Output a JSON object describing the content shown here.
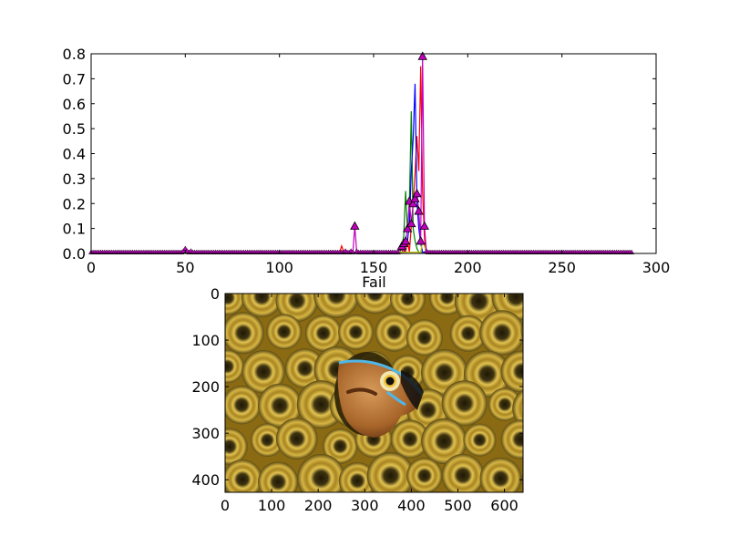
{
  "chart_data": [
    {
      "type": "line",
      "title": "",
      "xlabel": "",
      "ylabel": "",
      "xlim": [
        0,
        300
      ],
      "ylim": [
        0,
        0.8
      ],
      "xticks": [
        0,
        50,
        100,
        150,
        200,
        250,
        300
      ],
      "yticks": [
        0.0,
        0.1,
        0.2,
        0.3,
        0.4,
        0.5,
        0.6,
        0.7,
        0.8
      ],
      "xtick_labels": [
        "0",
        "50",
        "100",
        "150",
        "200",
        "250",
        "300"
      ],
      "ytick_labels": [
        "0.0",
        "0.1",
        "0.2",
        "0.3",
        "0.4",
        "0.5",
        "0.6",
        "0.7",
        "0.8"
      ],
      "grid": false,
      "legend": "none",
      "x_range_of_series": [
        0,
        287
      ],
      "series": [
        {
          "color": "#ff0000",
          "marker": "none",
          "peaks": [
            {
              "x": 133,
              "y": 0.03
            },
            {
              "x": 134,
              "y": 0.01
            },
            {
              "x": 166,
              "y": 0.02
            },
            {
              "x": 168,
              "y": 0.05
            },
            {
              "x": 170,
              "y": 0.11
            },
            {
              "x": 171,
              "y": 0.2
            },
            {
              "x": 172,
              "y": 0.32
            },
            {
              "x": 173,
              "y": 0.47
            },
            {
              "x": 174,
              "y": 0.33
            },
            {
              "x": 175,
              "y": 0.75
            },
            {
              "x": 176,
              "y": 0.25
            },
            {
              "x": 177,
              "y": 0.06
            }
          ]
        },
        {
          "color": "#008000",
          "marker": "none",
          "peaks": [
            {
              "x": 165,
              "y": 0.03
            },
            {
              "x": 166,
              "y": 0.07
            },
            {
              "x": 167,
              "y": 0.25
            },
            {
              "x": 168,
              "y": 0.09
            },
            {
              "x": 169,
              "y": 0.2
            },
            {
              "x": 170,
              "y": 0.57
            },
            {
              "x": 171,
              "y": 0.1
            },
            {
              "x": 172,
              "y": 0.05
            },
            {
              "x": 173,
              "y": 0.02
            }
          ]
        },
        {
          "color": "#0000ff",
          "marker": "none",
          "peaks": [
            {
              "x": 167,
              "y": 0.04
            },
            {
              "x": 168,
              "y": 0.05
            },
            {
              "x": 169,
              "y": 0.12
            },
            {
              "x": 170,
              "y": 0.33
            },
            {
              "x": 171,
              "y": 0.46
            },
            {
              "x": 172,
              "y": 0.68
            },
            {
              "x": 173,
              "y": 0.21
            },
            {
              "x": 174,
              "y": 0.1
            },
            {
              "x": 175,
              "y": 0.04
            }
          ]
        },
        {
          "color": "#bfbf00",
          "marker": "none",
          "peaks": [
            {
              "x": 176,
              "y": 0.05
            },
            {
              "x": 177,
              "y": 0.03
            }
          ]
        },
        {
          "color": "#bf00bf",
          "marker": "triangle",
          "peaks": [
            {
              "x": 49,
              "y": 0.01
            },
            {
              "x": 50,
              "y": 0.02
            },
            {
              "x": 51,
              "y": 0.01
            },
            {
              "x": 53,
              "y": 0.01
            },
            {
              "x": 135,
              "y": 0.01
            },
            {
              "x": 138,
              "y": 0.01
            },
            {
              "x": 140,
              "y": 0.11
            },
            {
              "x": 141,
              "y": 0.01
            },
            {
              "x": 164,
              "y": 0.02
            },
            {
              "x": 165,
              "y": 0.03
            },
            {
              "x": 166,
              "y": 0.04
            },
            {
              "x": 167,
              "y": 0.05
            },
            {
              "x": 168,
              "y": 0.1
            },
            {
              "x": 169,
              "y": 0.21
            },
            {
              "x": 170,
              "y": 0.12
            },
            {
              "x": 171,
              "y": 0.2
            },
            {
              "x": 172,
              "y": 0.22
            },
            {
              "x": 173,
              "y": 0.24
            },
            {
              "x": 174,
              "y": 0.17
            },
            {
              "x": 175,
              "y": 0.05
            },
            {
              "x": 176,
              "y": 0.79
            },
            {
              "x": 177,
              "y": 0.11
            },
            {
              "x": 178,
              "y": 0.01
            }
          ]
        }
      ]
    },
    {
      "type": "image",
      "title": "Fail",
      "xlim": [
        0,
        640
      ],
      "ylim": [
        427,
        0
      ],
      "xticks": [
        0,
        100,
        200,
        300,
        400,
        500,
        600
      ],
      "yticks": [
        0,
        100,
        200,
        300,
        400
      ],
      "xtick_labels": [
        "0",
        "100",
        "200",
        "300",
        "400",
        "500",
        "600"
      ],
      "ytick_labels": [
        "0",
        "100",
        "200",
        "300",
        "400"
      ],
      "colors": {
        "coral_dark": "#3a2f0c",
        "coral_mid": "#8a6a12",
        "coral_light": "#d8b53a",
        "fish_body": "#b8732e",
        "fish_stripe": "#4fb6e8"
      }
    }
  ]
}
